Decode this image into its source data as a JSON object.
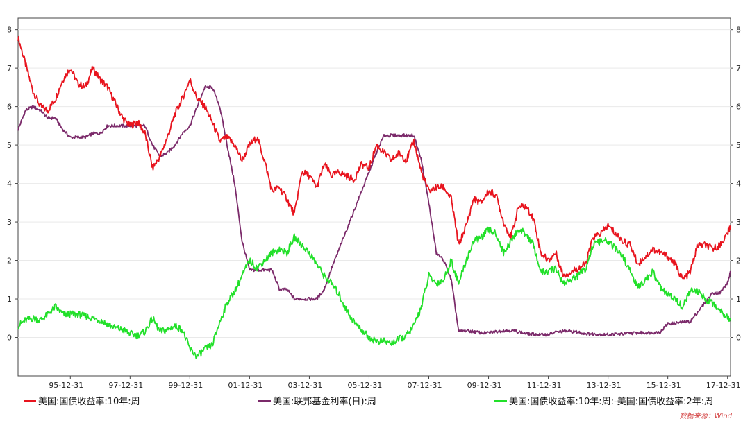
{
  "chart_data": {
    "type": "line",
    "title": "",
    "xlabel": "",
    "ylabel": "",
    "ylim": [
      -1,
      8.3
    ],
    "y_ticks": [
      0,
      1,
      2,
      3,
      4,
      5,
      6,
      7,
      8
    ],
    "y_axes": "left and right (mirrored)",
    "grid": "horizontal, light",
    "x_range": [
      1994.25,
      2018.1
    ],
    "x_tick_labels": [
      "95-12-31",
      "97-12-31",
      "99-12-31",
      "01-12-31",
      "03-12-31",
      "05-12-31",
      "07-12-31",
      "09-12-31",
      "11-12-31",
      "13-12-31",
      "15-12-31",
      "17-12-31"
    ],
    "x_tick_values": [
      1996.0,
      1998.0,
      2000.0,
      2002.0,
      2004.0,
      2006.0,
      2008.0,
      2010.0,
      2012.0,
      2014.0,
      2016.0,
      2018.0
    ],
    "legend_position": "bottom",
    "source": "数据来源：Wind",
    "series": [
      {
        "name": "美国:国债收益率:10年:周",
        "color": "#e8141e",
        "points": [
          [
            1994.25,
            7.8
          ],
          [
            1994.5,
            7.1
          ],
          [
            1994.75,
            6.4
          ],
          [
            1995.0,
            6.0
          ],
          [
            1995.25,
            5.9
          ],
          [
            1995.5,
            6.2
          ],
          [
            1995.75,
            6.7
          ],
          [
            1996.0,
            7.0
          ],
          [
            1996.25,
            6.6
          ],
          [
            1996.5,
            6.5
          ],
          [
            1996.75,
            7.0
          ],
          [
            1997.0,
            6.7
          ],
          [
            1997.25,
            6.5
          ],
          [
            1997.5,
            6.1
          ],
          [
            1997.75,
            5.7
          ],
          [
            1998.0,
            5.5
          ],
          [
            1998.25,
            5.6
          ],
          [
            1998.5,
            5.3
          ],
          [
            1998.75,
            4.4
          ],
          [
            1999.0,
            4.7
          ],
          [
            1999.25,
            5.2
          ],
          [
            1999.5,
            5.8
          ],
          [
            1999.75,
            6.2
          ],
          [
            2000.0,
            6.7
          ],
          [
            2000.25,
            6.2
          ],
          [
            2000.5,
            6.0
          ],
          [
            2000.75,
            5.6
          ],
          [
            2001.0,
            5.1
          ],
          [
            2001.25,
            5.2
          ],
          [
            2001.5,
            5.0
          ],
          [
            2001.75,
            4.6
          ],
          [
            2002.0,
            5.0
          ],
          [
            2002.25,
            5.2
          ],
          [
            2002.5,
            4.6
          ],
          [
            2002.75,
            3.8
          ],
          [
            2003.0,
            3.9
          ],
          [
            2003.25,
            3.6
          ],
          [
            2003.5,
            3.2
          ],
          [
            2003.75,
            4.3
          ],
          [
            2004.0,
            4.2
          ],
          [
            2004.25,
            3.9
          ],
          [
            2004.5,
            4.5
          ],
          [
            2004.75,
            4.2
          ],
          [
            2005.0,
            4.3
          ],
          [
            2005.25,
            4.2
          ],
          [
            2005.5,
            4.1
          ],
          [
            2005.75,
            4.5
          ],
          [
            2006.0,
            4.4
          ],
          [
            2006.25,
            5.0
          ],
          [
            2006.5,
            4.8
          ],
          [
            2006.75,
            4.6
          ],
          [
            2007.0,
            4.8
          ],
          [
            2007.25,
            4.6
          ],
          [
            2007.5,
            5.1
          ],
          [
            2007.75,
            4.3
          ],
          [
            2008.0,
            3.8
          ],
          [
            2008.25,
            3.9
          ],
          [
            2008.5,
            3.9
          ],
          [
            2008.75,
            3.6
          ],
          [
            2009.0,
            2.4
          ],
          [
            2009.25,
            2.9
          ],
          [
            2009.5,
            3.6
          ],
          [
            2009.75,
            3.5
          ],
          [
            2010.0,
            3.8
          ],
          [
            2010.25,
            3.7
          ],
          [
            2010.5,
            3.0
          ],
          [
            2010.75,
            2.6
          ],
          [
            2011.0,
            3.4
          ],
          [
            2011.25,
            3.4
          ],
          [
            2011.5,
            3.1
          ],
          [
            2011.75,
            2.2
          ],
          [
            2012.0,
            2.0
          ],
          [
            2012.25,
            2.2
          ],
          [
            2012.5,
            1.6
          ],
          [
            2012.75,
            1.7
          ],
          [
            2013.0,
            1.8
          ],
          [
            2013.25,
            1.9
          ],
          [
            2013.5,
            2.6
          ],
          [
            2013.75,
            2.7
          ],
          [
            2014.0,
            2.9
          ],
          [
            2014.25,
            2.7
          ],
          [
            2014.5,
            2.5
          ],
          [
            2014.75,
            2.4
          ],
          [
            2015.0,
            1.9
          ],
          [
            2015.25,
            2.1
          ],
          [
            2015.5,
            2.3
          ],
          [
            2015.75,
            2.2
          ],
          [
            2016.0,
            2.1
          ],
          [
            2016.25,
            1.9
          ],
          [
            2016.5,
            1.5
          ],
          [
            2016.75,
            1.7
          ],
          [
            2017.0,
            2.4
          ],
          [
            2017.25,
            2.4
          ],
          [
            2017.5,
            2.3
          ],
          [
            2017.75,
            2.4
          ],
          [
            2018.0,
            2.7
          ],
          [
            2018.1,
            2.9
          ]
        ]
      },
      {
        "name": "美国:联邦基金利率(日):周",
        "color": "#7b2a6a",
        "points": [
          [
            1994.25,
            5.4
          ],
          [
            1994.5,
            5.9
          ],
          [
            1994.75,
            6.0
          ],
          [
            1995.0,
            5.9
          ],
          [
            1995.25,
            5.7
          ],
          [
            1995.5,
            5.7
          ],
          [
            1995.75,
            5.4
          ],
          [
            1996.0,
            5.2
          ],
          [
            1996.25,
            5.2
          ],
          [
            1996.5,
            5.2
          ],
          [
            1996.75,
            5.3
          ],
          [
            1997.0,
            5.3
          ],
          [
            1997.25,
            5.5
          ],
          [
            1997.5,
            5.5
          ],
          [
            1997.75,
            5.5
          ],
          [
            1998.0,
            5.5
          ],
          [
            1998.25,
            5.5
          ],
          [
            1998.5,
            5.5
          ],
          [
            1998.75,
            5.0
          ],
          [
            1999.0,
            4.7
          ],
          [
            1999.25,
            4.8
          ],
          [
            1999.5,
            5.0
          ],
          [
            1999.75,
            5.3
          ],
          [
            2000.0,
            5.5
          ],
          [
            2000.25,
            6.0
          ],
          [
            2000.5,
            6.5
          ],
          [
            2000.75,
            6.5
          ],
          [
            2001.0,
            6.0
          ],
          [
            2001.25,
            5.0
          ],
          [
            2001.5,
            4.0
          ],
          [
            2001.75,
            2.5
          ],
          [
            2002.0,
            1.75
          ],
          [
            2002.25,
            1.75
          ],
          [
            2002.5,
            1.75
          ],
          [
            2002.75,
            1.75
          ],
          [
            2003.0,
            1.25
          ],
          [
            2003.25,
            1.25
          ],
          [
            2003.5,
            1.0
          ],
          [
            2003.75,
            1.0
          ],
          [
            2004.0,
            1.0
          ],
          [
            2004.25,
            1.0
          ],
          [
            2004.5,
            1.25
          ],
          [
            2004.75,
            1.8
          ],
          [
            2005.0,
            2.3
          ],
          [
            2005.25,
            2.8
          ],
          [
            2005.5,
            3.3
          ],
          [
            2005.75,
            3.8
          ],
          [
            2006.0,
            4.3
          ],
          [
            2006.25,
            4.8
          ],
          [
            2006.5,
            5.25
          ],
          [
            2006.75,
            5.25
          ],
          [
            2007.0,
            5.25
          ],
          [
            2007.25,
            5.25
          ],
          [
            2007.5,
            5.25
          ],
          [
            2007.75,
            4.6
          ],
          [
            2008.0,
            3.5
          ],
          [
            2008.25,
            2.2
          ],
          [
            2008.5,
            2.0
          ],
          [
            2008.75,
            1.5
          ],
          [
            2009.0,
            0.15
          ],
          [
            2009.25,
            0.18
          ],
          [
            2009.5,
            0.15
          ],
          [
            2009.75,
            0.12
          ],
          [
            2010.0,
            0.12
          ],
          [
            2010.25,
            0.15
          ],
          [
            2010.5,
            0.18
          ],
          [
            2010.75,
            0.18
          ],
          [
            2011.0,
            0.15
          ],
          [
            2011.25,
            0.1
          ],
          [
            2011.5,
            0.08
          ],
          [
            2011.75,
            0.07
          ],
          [
            2012.0,
            0.08
          ],
          [
            2012.25,
            0.14
          ],
          [
            2012.5,
            0.16
          ],
          [
            2012.75,
            0.16
          ],
          [
            2013.0,
            0.14
          ],
          [
            2013.25,
            0.1
          ],
          [
            2013.5,
            0.09
          ],
          [
            2013.75,
            0.08
          ],
          [
            2014.0,
            0.07
          ],
          [
            2014.25,
            0.09
          ],
          [
            2014.5,
            0.09
          ],
          [
            2014.75,
            0.11
          ],
          [
            2015.0,
            0.12
          ],
          [
            2015.25,
            0.12
          ],
          [
            2015.5,
            0.13
          ],
          [
            2015.75,
            0.14
          ],
          [
            2016.0,
            0.36
          ],
          [
            2016.25,
            0.37
          ],
          [
            2016.5,
            0.4
          ],
          [
            2016.75,
            0.41
          ],
          [
            2017.0,
            0.66
          ],
          [
            2017.25,
            0.91
          ],
          [
            2017.5,
            1.16
          ],
          [
            2017.75,
            1.16
          ],
          [
            2018.0,
            1.42
          ],
          [
            2018.1,
            1.7
          ]
        ]
      },
      {
        "name": "美国:国债收益率:10年:周:-美国:国债收益率:2年:周",
        "color": "#22e02a",
        "points": [
          [
            1994.25,
            0.3
          ],
          [
            1994.5,
            0.45
          ],
          [
            1994.75,
            0.5
          ],
          [
            1995.0,
            0.45
          ],
          [
            1995.25,
            0.6
          ],
          [
            1995.5,
            0.8
          ],
          [
            1995.75,
            0.6
          ],
          [
            1996.0,
            0.6
          ],
          [
            1996.25,
            0.6
          ],
          [
            1996.5,
            0.55
          ],
          [
            1996.75,
            0.5
          ],
          [
            1997.0,
            0.45
          ],
          [
            1997.25,
            0.35
          ],
          [
            1997.5,
            0.25
          ],
          [
            1997.75,
            0.2
          ],
          [
            1998.0,
            0.1
          ],
          [
            1998.25,
            0.05
          ],
          [
            1998.5,
            0.15
          ],
          [
            1998.75,
            0.5
          ],
          [
            1999.0,
            0.15
          ],
          [
            1999.25,
            0.2
          ],
          [
            1999.5,
            0.3
          ],
          [
            1999.75,
            0.2
          ],
          [
            2000.0,
            -0.3
          ],
          [
            2000.25,
            -0.5
          ],
          [
            2000.5,
            -0.3
          ],
          [
            2000.75,
            -0.2
          ],
          [
            2001.0,
            0.4
          ],
          [
            2001.25,
            0.9
          ],
          [
            2001.5,
            1.2
          ],
          [
            2001.75,
            1.6
          ],
          [
            2002.0,
            2.0
          ],
          [
            2002.25,
            1.8
          ],
          [
            2002.5,
            2.0
          ],
          [
            2002.75,
            2.2
          ],
          [
            2003.0,
            2.3
          ],
          [
            2003.25,
            2.2
          ],
          [
            2003.5,
            2.6
          ],
          [
            2003.75,
            2.4
          ],
          [
            2004.0,
            2.2
          ],
          [
            2004.25,
            1.9
          ],
          [
            2004.5,
            1.6
          ],
          [
            2004.75,
            1.4
          ],
          [
            2005.0,
            1.1
          ],
          [
            2005.25,
            0.7
          ],
          [
            2005.5,
            0.4
          ],
          [
            2005.75,
            0.2
          ],
          [
            2006.0,
            0.0
          ],
          [
            2006.25,
            -0.1
          ],
          [
            2006.5,
            -0.1
          ],
          [
            2006.75,
            -0.15
          ],
          [
            2007.0,
            -0.05
          ],
          [
            2007.25,
            0.05
          ],
          [
            2007.5,
            0.3
          ],
          [
            2007.75,
            0.8
          ],
          [
            2008.0,
            1.6
          ],
          [
            2008.25,
            1.4
          ],
          [
            2008.5,
            1.5
          ],
          [
            2008.75,
            2.0
          ],
          [
            2009.0,
            1.4
          ],
          [
            2009.25,
            2.0
          ],
          [
            2009.5,
            2.5
          ],
          [
            2009.75,
            2.6
          ],
          [
            2010.0,
            2.8
          ],
          [
            2010.25,
            2.7
          ],
          [
            2010.5,
            2.2
          ],
          [
            2010.75,
            2.5
          ],
          [
            2011.0,
            2.8
          ],
          [
            2011.25,
            2.7
          ],
          [
            2011.5,
            2.4
          ],
          [
            2011.75,
            1.7
          ],
          [
            2012.0,
            1.7
          ],
          [
            2012.25,
            1.8
          ],
          [
            2012.5,
            1.4
          ],
          [
            2012.75,
            1.5
          ],
          [
            2013.0,
            1.6
          ],
          [
            2013.25,
            1.8
          ],
          [
            2013.5,
            2.4
          ],
          [
            2013.75,
            2.5
          ],
          [
            2014.0,
            2.5
          ],
          [
            2014.25,
            2.3
          ],
          [
            2014.5,
            2.1
          ],
          [
            2014.75,
            1.7
          ],
          [
            2015.0,
            1.3
          ],
          [
            2015.25,
            1.5
          ],
          [
            2015.5,
            1.7
          ],
          [
            2015.75,
            1.3
          ],
          [
            2016.0,
            1.1
          ],
          [
            2016.25,
            1.0
          ],
          [
            2016.5,
            0.8
          ],
          [
            2016.75,
            1.2
          ],
          [
            2017.0,
            1.2
          ],
          [
            2017.25,
            1.0
          ],
          [
            2017.5,
            0.9
          ],
          [
            2017.75,
            0.7
          ],
          [
            2018.0,
            0.55
          ],
          [
            2018.1,
            0.45
          ]
        ]
      }
    ]
  }
}
